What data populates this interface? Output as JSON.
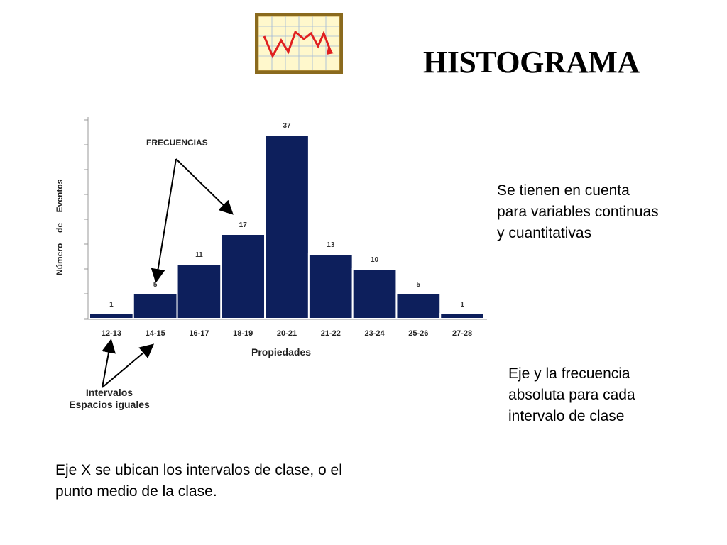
{
  "title": "HISTOGRAMA",
  "notes": {
    "right_top": "Se tienen en cuenta para variables continuas y cuantitativas",
    "right_bottom": "Eje y la frecuencia absoluta para cada intervalo de clase",
    "bottom": "Eje X se ubican los intervalos de clase, o el punto medio de la clase."
  },
  "annotations": {
    "frecuencias": "FRECUENCIAS",
    "intervalos_line1": "Intervalos",
    "intervalos_line2": "Espacios iguales"
  },
  "colors": {
    "bar": "#0d1f5c",
    "bar_stroke": "#ffffff",
    "icon_frame": "#8a6a1e",
    "icon_bg": "#fff8cc",
    "icon_line": "#e02020"
  },
  "icon": "line-chart-icon",
  "chart_data": {
    "type": "bar",
    "categories": [
      "12-13",
      "14-15",
      "16-17",
      "18-19",
      "20-21",
      "21-22",
      "23-24",
      "25-26",
      "27-28"
    ],
    "values": [
      1,
      5,
      11,
      17,
      37,
      13,
      10,
      5,
      1
    ],
    "xlabel": "Propiedades",
    "ylabel": "Número  de  Eventos",
    "ylim": [
      0,
      40
    ],
    "grid": false
  }
}
